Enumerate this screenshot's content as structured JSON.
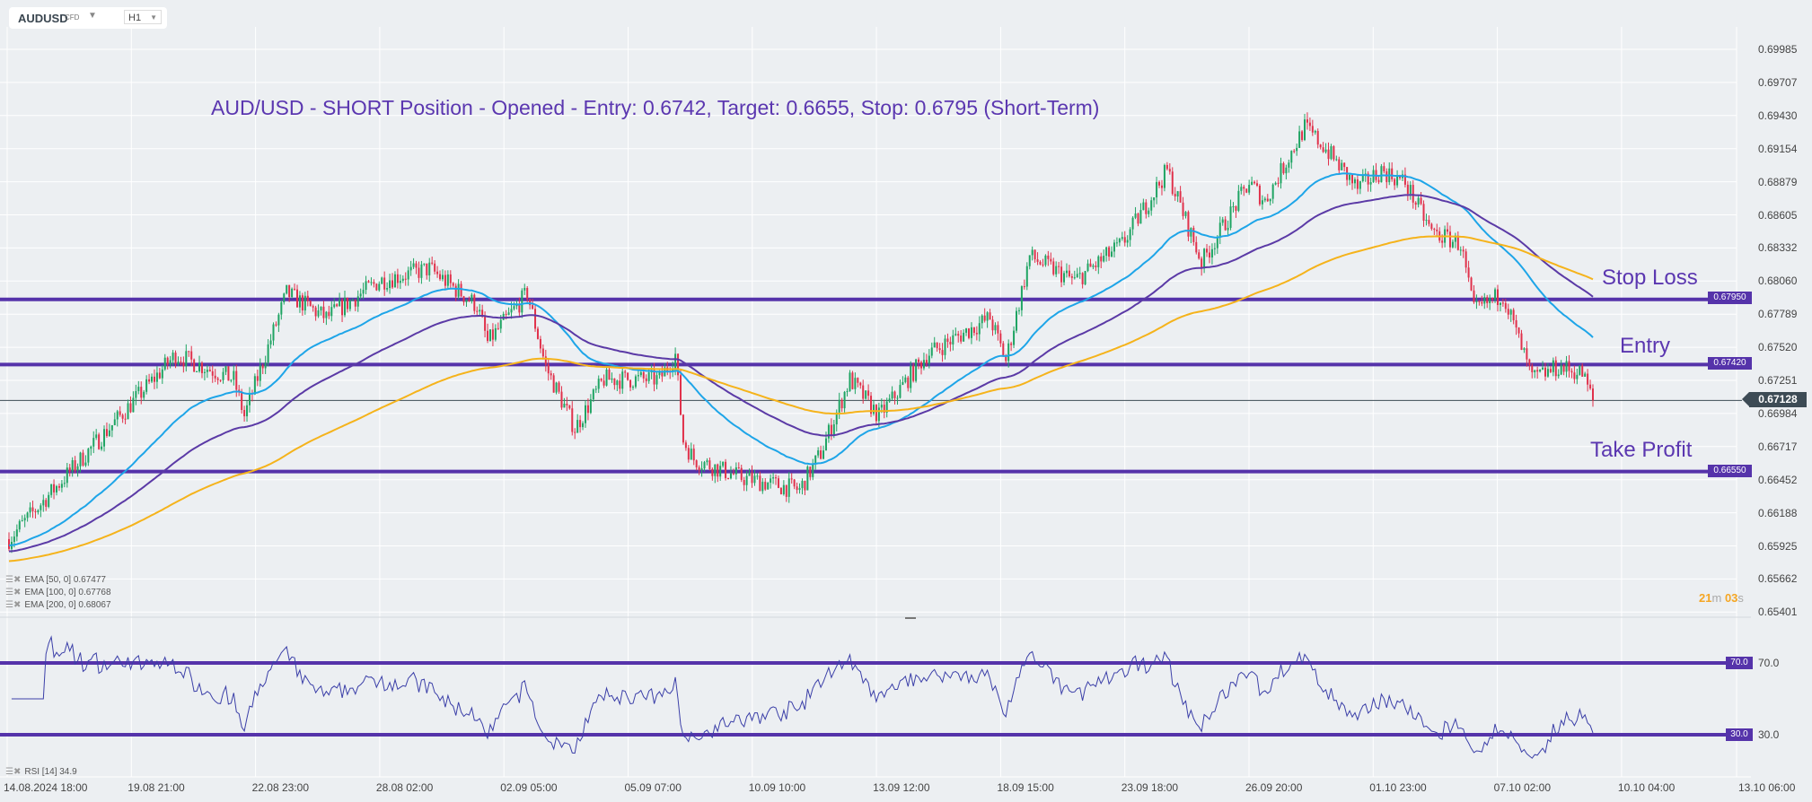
{
  "toolbar": {
    "symbol": "AUDUSD",
    "symbol_type": "CFD",
    "timeframe": "H1"
  },
  "title": "AUD/USD - SHORT Position - Opened - Entry: 0.6742, Target: 0.6655, Stop: 0.6795 (Short-Term)",
  "annotations": {
    "stop_loss": "Stop Loss",
    "entry": "Entry",
    "take_profit": "Take Profit"
  },
  "levels": {
    "stop": "0.67950",
    "entry": "0.67420",
    "target": "0.66550",
    "current": "0.67128",
    "rsi_high": "70.0",
    "rsi_low": "30.0"
  },
  "price_axis": [
    "0.69985",
    "0.69707",
    "0.69430",
    "0.69154",
    "0.68879",
    "0.68605",
    "0.68332",
    "0.68060",
    "0.67789",
    "0.67520",
    "0.67251",
    "0.66984",
    "0.66717",
    "0.66452",
    "0.66188",
    "0.65925",
    "0.65662",
    "0.65401"
  ],
  "rsi_axis": [
    "70.0",
    "30.0"
  ],
  "time_axis": [
    "14.08.2024  18:00",
    "19.08  21:00",
    "22.08  23:00",
    "28.08  02:00",
    "02.09  05:00",
    "05.09  07:00",
    "10.09  10:00",
    "13.09  12:00",
    "18.09  15:00",
    "23.09  18:00",
    "26.09  20:00",
    "01.10  23:00",
    "07.10  02:00",
    "10.10  04:00",
    "13.10  06:00"
  ],
  "indicators": [
    {
      "label": "EMA  [50,  0] 0.67477",
      "color": "#1ea5e8"
    },
    {
      "label": "EMA  [100,  0] 0.67768",
      "color": "#5b3aa6"
    },
    {
      "label": "EMA  [200,  0] 0.68067",
      "color": "#f5b31b"
    }
  ],
  "rsi_label": "RSI  [14]  34.9",
  "timer": {
    "min": "21",
    "m": "m",
    "sec": "03",
    "s": "s"
  },
  "colors": {
    "up": "#1fa463",
    "down": "#e0314b",
    "level": "#5533aa"
  },
  "chart_data": {
    "type": "candlestick",
    "bars": 600,
    "waypoints_bar_index": [
      0,
      63,
      85,
      89,
      105,
      120,
      140,
      159,
      177,
      181,
      196,
      203,
      214,
      225,
      246,
      252,
      255,
      259,
      277,
      299,
      307,
      318,
      329,
      347,
      371,
      377,
      386,
      403,
      421,
      438,
      451,
      469,
      475,
      490,
      497,
      510,
      519,
      528,
      538,
      549,
      554,
      565,
      576,
      586,
      595,
      599
    ],
    "waypoints_price": [
      0.66,
      0.675,
      0.673,
      0.67,
      0.68,
      0.678,
      0.681,
      0.682,
      0.679,
      0.676,
      0.68,
      0.674,
      0.669,
      0.673,
      0.673,
      0.675,
      0.668,
      0.6665,
      0.665,
      0.664,
      0.667,
      0.673,
      0.67,
      0.675,
      0.678,
      0.6745,
      0.683,
      0.681,
      0.684,
      0.69,
      0.6825,
      0.689,
      0.6875,
      0.6935,
      0.692,
      0.6885,
      0.69,
      0.689,
      0.685,
      0.684,
      0.6785,
      0.68,
      0.673,
      0.674,
      0.6735,
      0.6713
    ],
    "ema_periods": [
      50,
      100,
      200
    ],
    "rsi_period": 14
  }
}
